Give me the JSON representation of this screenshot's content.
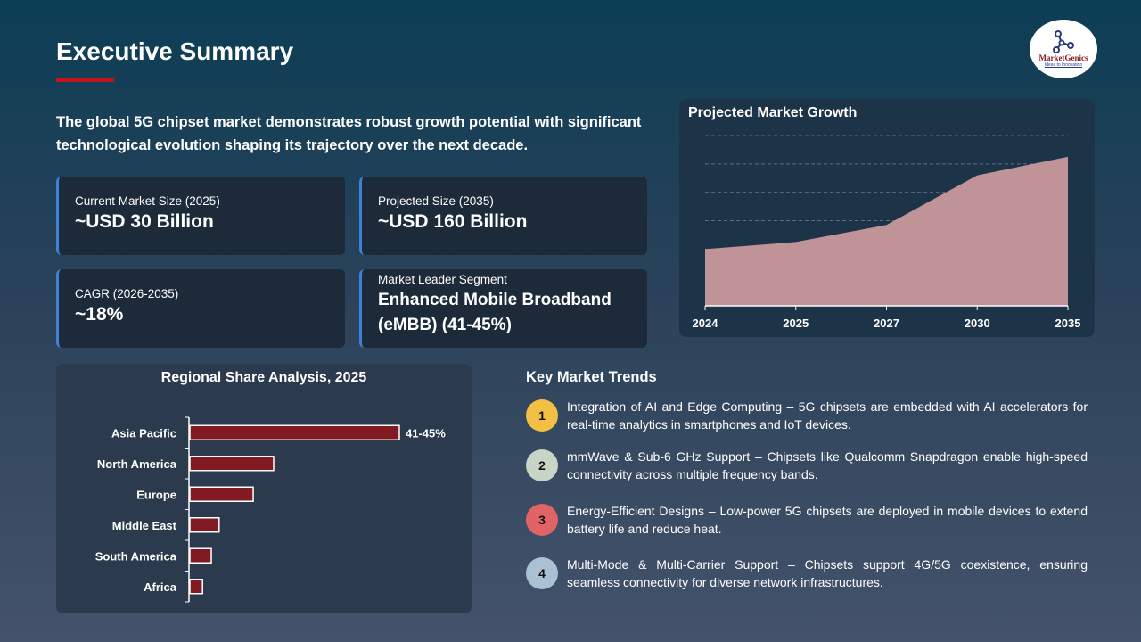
{
  "title": "Executive Summary",
  "logo": {
    "name": "MarketGenics",
    "tagline": "Ideas to Innovation"
  },
  "intro": "The global 5G chipset market demonstrates robust growth potential with significant technological evolution shaping its trajectory over the next decade.",
  "cards": [
    {
      "label": "Current Market Size (2025)",
      "value": "~USD 30 Billion"
    },
    {
      "label": "Projected Size (2035)",
      "value": "~USD 160 Billion"
    },
    {
      "label": "CAGR (2026-2035)",
      "value": "~18%"
    },
    {
      "label": "Market Leader Segment",
      "value": "Enhanced Mobile Broadband (eMBB) (41-45%)"
    }
  ],
  "colors": {
    "accent": "#c0141e",
    "card_border": "#3b82d9",
    "area_fill": "#bf9397",
    "bar_fill": "#821a24"
  },
  "chart_data": [
    {
      "type": "area",
      "title": "Projected Market Growth",
      "categories": [
        "2024",
        "2025",
        "2027",
        "2030",
        "2035"
      ],
      "values": [
        2.0,
        2.25,
        2.85,
        4.6,
        5.25
      ],
      "ylim": [
        0,
        6
      ],
      "grid": true,
      "y_axis_shown": false
    },
    {
      "type": "bar",
      "orientation": "horizontal",
      "title": "Regional Share Analysis, 2025",
      "categories": [
        "Asia Pacific",
        "North America",
        "Europe",
        "Middle East",
        "South America",
        "Africa"
      ],
      "values": [
        43,
        17.2,
        13,
        6,
        4.4,
        2.6
      ],
      "data_labels": [
        "41-45%",
        "",
        "",
        "",
        "",
        ""
      ],
      "unit": "%"
    }
  ],
  "trends": {
    "title": "Key Market Trends",
    "items": [
      {
        "num": "1",
        "color": "#f2c044",
        "text": "Integration of AI and Edge Computing – 5G chipsets are embedded with AI accelerators for real-time analytics in smartphones and IoT devices."
      },
      {
        "num": "2",
        "color": "#c9d3c6",
        "text": "mmWave & Sub-6 GHz Support – Chipsets like Qualcomm Snapdragon enable high-speed connectivity across multiple frequency bands."
      },
      {
        "num": "3",
        "color": "#e06466",
        "text": "Energy-Efficient Designs – Low-power 5G chipsets are deployed in mobile devices to extend battery life and reduce heat."
      },
      {
        "num": "4",
        "color": "#a9c1d3",
        "text": "Multi-Mode & Multi-Carrier Support – Chipsets support 4G/5G coexistence, ensuring seamless connectivity for diverse network infrastructures."
      }
    ]
  }
}
